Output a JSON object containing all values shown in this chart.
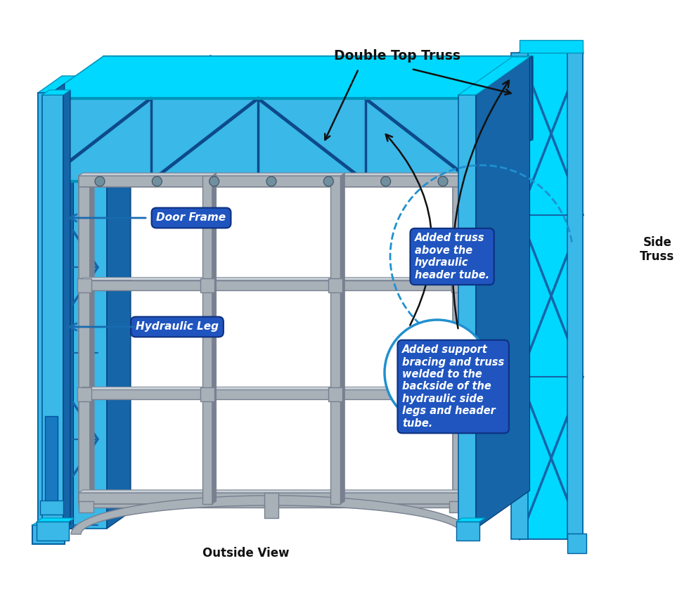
{
  "bg_color": "#ffffff",
  "label_bg_color": "#2055c0",
  "label_text_color": "#ffffff",
  "label_door_frame": "Door Frame",
  "label_hydraulic_leg": "Hydraulic Leg",
  "label_double_top_truss": "Double Top Truss",
  "label_side_truss": "Side\nTruss",
  "label_outside_view": "Outside View",
  "label_added_truss": "Added truss\nabove the\nhydraulic\nheader tube.",
  "label_added_support": "Added support\nbracing and truss\nwelded to the\nbackside of the\nhydraulic side\nlegs and header\ntube.",
  "c_blue": "#3ab8e8",
  "c_cyan": "#00d8ff",
  "c_dark_blue": "#1565a8",
  "c_navy": "#0d4a8a",
  "c_gray": "#a8b0b8",
  "c_gray_dark": "#788090",
  "c_gray_light": "#c8d0d8",
  "c_steel": "#5090c0",
  "c_black": "#111111"
}
